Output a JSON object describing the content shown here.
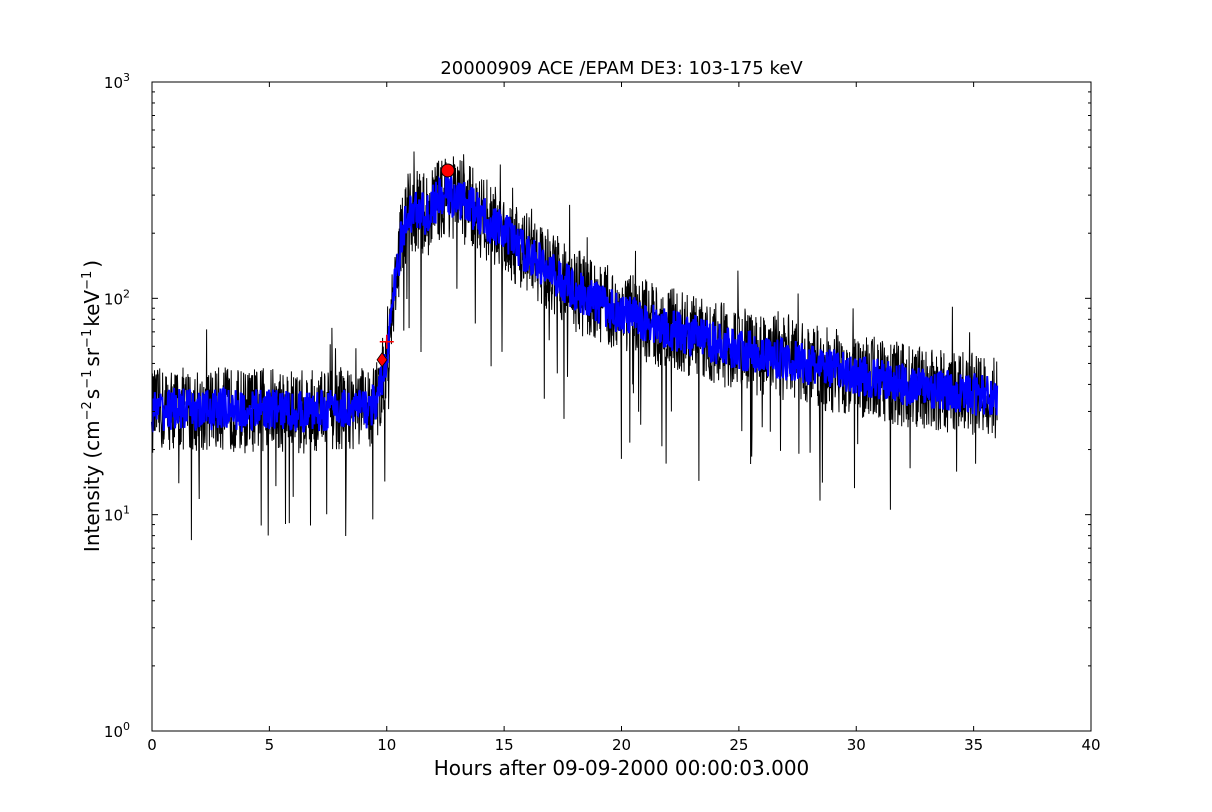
{
  "chart_data": {
    "type": "line",
    "title": "20000909 ACE /EPAM DE3: 103-175 keV",
    "xlabel": "Hours after 09-09-2000 00:00:03.000",
    "ylabel": {
      "prefix": "Intensity (cm",
      "exp1": "−2",
      "mid1": "s",
      "exp2": "−1",
      "mid2": "sr",
      "exp3": "−1",
      "mid3": "keV",
      "exp4": "−1",
      "suffix": ")"
    },
    "xlim": [
      0,
      40
    ],
    "ylim": [
      1,
      1000
    ],
    "yscale": "log",
    "grid": false,
    "x_ticks": [
      0,
      5,
      10,
      15,
      20,
      25,
      30,
      35,
      40
    ],
    "y_ticks": [
      {
        "base": "10",
        "exp": "0"
      },
      {
        "base": "10",
        "exp": "1"
      },
      {
        "base": "10",
        "exp": "2"
      },
      {
        "base": "10",
        "exp": "3"
      }
    ],
    "series": [
      {
        "style": "raw",
        "color": "#000000",
        "x": [
          0,
          1,
          2,
          3,
          4,
          5,
          6,
          7,
          8,
          9,
          9.5,
          9.8,
          10,
          10.3,
          10.6,
          10.9,
          11.3,
          11.7,
          12,
          12.3,
          12.6,
          13,
          13.5,
          14,
          15,
          16,
          17,
          18,
          19,
          20,
          22,
          24,
          26,
          28,
          30,
          32,
          34,
          36
        ],
        "y": [
          30,
          31,
          30,
          31,
          30,
          31,
          30,
          30,
          31,
          31,
          32,
          40,
          55,
          100,
          180,
          240,
          260,
          240,
          270,
          290,
          300,
          290,
          270,
          240,
          200,
          160,
          130,
          110,
          95,
          85,
          72,
          62,
          55,
          49,
          44,
          40,
          37,
          35
        ]
      },
      {
        "style": "smoothed",
        "color": "#0000ff",
        "x": [
          0,
          1,
          2,
          3,
          4,
          5,
          6,
          7,
          8,
          9,
          9.5,
          9.8,
          10,
          10.3,
          10.6,
          10.9,
          11.3,
          11.7,
          12,
          12.3,
          12.6,
          13,
          13.5,
          14,
          15,
          16,
          17,
          18,
          19,
          20,
          22,
          24,
          26,
          28,
          30,
          32,
          34,
          36
        ],
        "y": [
          30,
          31,
          30,
          31,
          30,
          31,
          30,
          30,
          31,
          31,
          32,
          40,
          55,
          100,
          180,
          240,
          260,
          240,
          270,
          290,
          300,
          290,
          270,
          240,
          200,
          160,
          130,
          110,
          95,
          85,
          72,
          62,
          55,
          49,
          44,
          40,
          37,
          35
        ]
      }
    ],
    "markers": [
      {
        "type": "circle",
        "x": 12.6,
        "y": 390,
        "color": "#ff0000"
      },
      {
        "type": "plus",
        "x": 10.0,
        "y": 63,
        "color": "#ff0000"
      },
      {
        "type": "diamond",
        "x": 9.8,
        "y": 52,
        "color": "#ff0000"
      }
    ]
  }
}
